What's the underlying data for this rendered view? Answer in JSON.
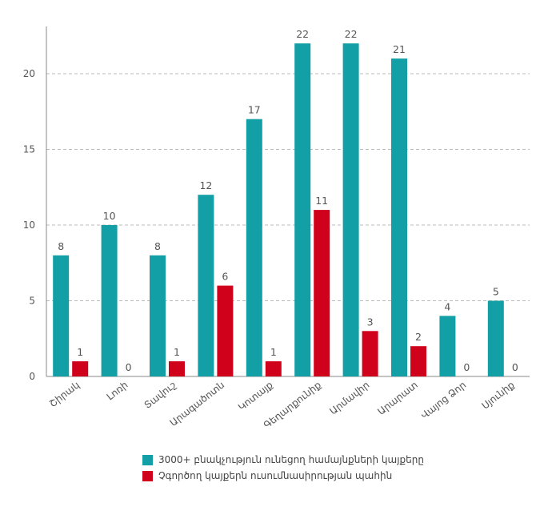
{
  "chart_data": {
    "type": "bar",
    "categories": [
      "Շիրակ",
      "Լոռի",
      "Տավուշ",
      "Արագածոտն",
      "Կոտայք",
      "Գեղարքունիք",
      "Արմավիր",
      "Արարատ",
      "Վայոց Ձոր",
      "Սյունիք"
    ],
    "series": [
      {
        "name": "3000+ բնակչություն ունեցող համայնքների կայքերը",
        "color": "#129fa6",
        "values": [
          8,
          10,
          8,
          12,
          17,
          22,
          22,
          21,
          4,
          5
        ]
      },
      {
        "name": "Չգործող կայքերն ուսումնասիրության պահին",
        "color": "#d0021b",
        "values": [
          1,
          0,
          1,
          6,
          1,
          11,
          3,
          2,
          0,
          0
        ]
      }
    ],
    "yticks": [
      0,
      5,
      10,
      15,
      20
    ],
    "ylim": [
      0,
      23
    ],
    "title": "",
    "xlabel": "",
    "ylabel": "",
    "grid": true,
    "legend_position": "bottom"
  }
}
